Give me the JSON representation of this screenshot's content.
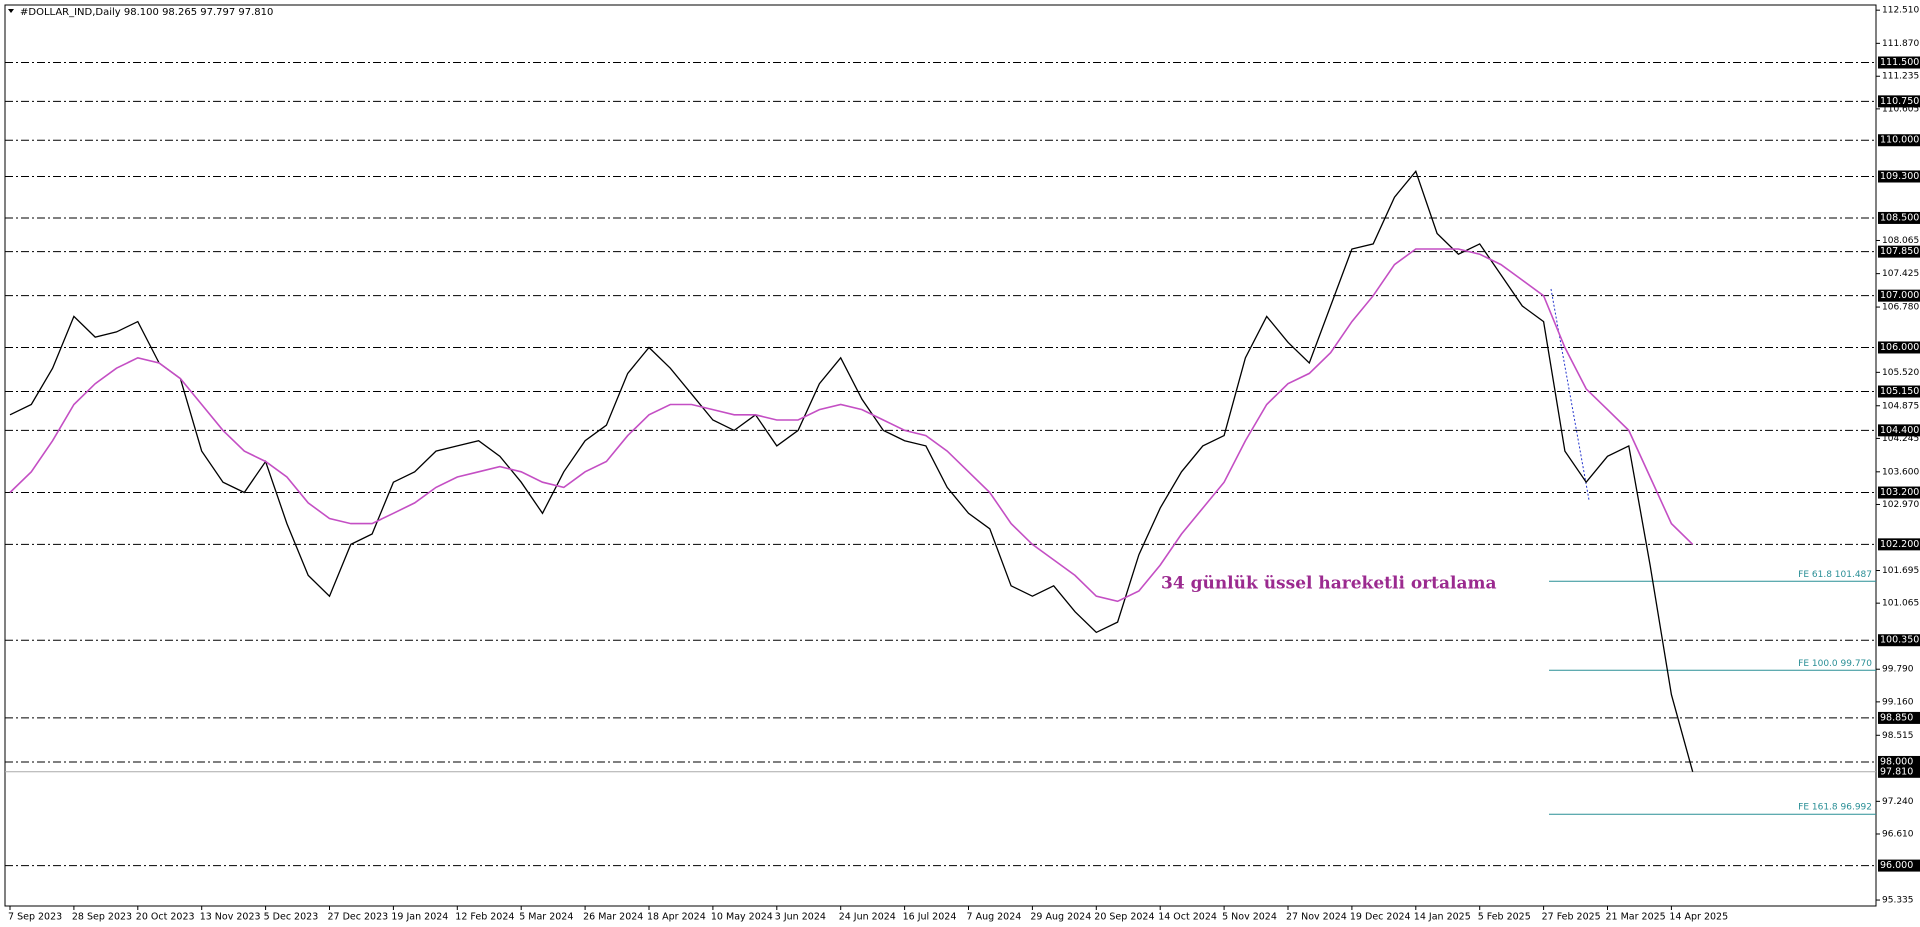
{
  "chart_data": {
    "type": "line",
    "title": "#DOLLAR_IND,Daily  98.100 98.265 97.797 97.810",
    "annotation": "34 günlük üssel hareketli ortalama",
    "annotation_color": "#9b2a8f",
    "categories": [
      "7 Sep 2023",
      null,
      null,
      "28 Sep 2023",
      null,
      null,
      "20 Oct 2023",
      null,
      null,
      "13 Nov 2023",
      null,
      null,
      "5 Dec 2023",
      null,
      null,
      "27 Dec 2023",
      null,
      null,
      "19 Jan 2024",
      null,
      null,
      "12 Feb 2024",
      null,
      null,
      "5 Mar 2024",
      null,
      null,
      "26 Mar 2024",
      null,
      null,
      "18 Apr 2024",
      null,
      null,
      "10 May 2024",
      null,
      null,
      "3 Jun 2024",
      null,
      null,
      "24 Jun 2024",
      null,
      null,
      "16 Jul 2024",
      null,
      null,
      "7 Aug 2024",
      null,
      null,
      "29 Aug 2024",
      null,
      null,
      "20 Sep 2024",
      null,
      null,
      "14 Oct 2024",
      null,
      null,
      "5 Nov 2024",
      null,
      null,
      "27 Nov 2024",
      null,
      null,
      "19 Dec 2024",
      null,
      null,
      "14 Jan 2025",
      null,
      null,
      "5 Feb 2025",
      null,
      null,
      "27 Feb 2025",
      null,
      null,
      "21 Mar 2025",
      null,
      null,
      "14 Apr 2025",
      null
    ],
    "series": [
      {
        "color": "#000000",
        "values": [
          104.7,
          104.9,
          105.6,
          106.6,
          106.2,
          106.3,
          106.5,
          105.7,
          105.4,
          104.0,
          103.4,
          103.2,
          103.8,
          102.6,
          101.6,
          101.2,
          102.2,
          102.4,
          103.4,
          103.6,
          104.0,
          104.1,
          104.2,
          103.9,
          103.4,
          102.8,
          103.6,
          104.2,
          104.5,
          105.5,
          106.0,
          105.6,
          105.1,
          104.6,
          104.4,
          104.7,
          104.1,
          104.4,
          105.3,
          105.8,
          105.0,
          104.4,
          104.2,
          104.1,
          103.3,
          102.8,
          102.5,
          101.4,
          101.2,
          101.4,
          100.9,
          100.5,
          100.7,
          102.0,
          102.9,
          103.6,
          104.1,
          104.3,
          105.8,
          106.6,
          106.1,
          105.7,
          106.8,
          107.9,
          108.0,
          108.9,
          109.4,
          108.2,
          107.8,
          108.0,
          107.4,
          106.8,
          106.5,
          104.0,
          103.4,
          103.9,
          104.1,
          101.8,
          99.3,
          97.81
        ]
      },
      {
        "color": "#c44fc4",
        "values": [
          103.2,
          103.6,
          104.2,
          104.9,
          105.3,
          105.6,
          105.8,
          105.7,
          105.4,
          104.9,
          104.4,
          104.0,
          103.8,
          103.5,
          103.0,
          102.7,
          102.6,
          102.6,
          102.8,
          103.0,
          103.3,
          103.5,
          103.6,
          103.7,
          103.6,
          103.4,
          103.3,
          103.6,
          103.8,
          104.3,
          104.7,
          104.9,
          104.9,
          104.8,
          104.7,
          104.7,
          104.6,
          104.6,
          104.8,
          104.9,
          104.8,
          104.6,
          104.4,
          104.3,
          104.0,
          103.6,
          103.2,
          102.6,
          102.2,
          101.9,
          101.6,
          101.2,
          101.1,
          101.3,
          101.8,
          102.4,
          102.9,
          103.4,
          104.2,
          104.9,
          105.3,
          105.5,
          105.9,
          106.5,
          107.0,
          107.6,
          107.9,
          107.9,
          107.9,
          107.8,
          107.6,
          107.3,
          107.0,
          106.0,
          105.2,
          104.8,
          104.4,
          103.5,
          102.6,
          102.2
        ]
      }
    ],
    "ylim": [
      95.22,
      112.61
    ],
    "yticks": [
      {
        "value": 112.51,
        "label": "112.510"
      },
      {
        "value": 111.87,
        "label": "111.870"
      },
      111.235,
      110.605,
      108.065,
      107.425,
      {
        "value": 106.78,
        "label": "106.780"
      },
      {
        "value": 105.52,
        "label": "105.520"
      },
      104.875,
      104.245,
      {
        "value": 103.6,
        "label": "103.600"
      },
      {
        "value": 102.97,
        "label": "102.970"
      },
      101.695,
      101.065,
      {
        "value": 99.79,
        "label": "99.790"
      },
      {
        "value": 99.16,
        "label": "99.160"
      },
      98.515,
      {
        "value": 97.24,
        "label": "97.240"
      },
      {
        "value": 96.61,
        "label": "96.610"
      },
      95.335
    ],
    "levels": [
      {
        "value": 111.5,
        "label": "111.500"
      },
      {
        "value": 110.75,
        "label": "110.750"
      },
      {
        "value": 110,
        "label": "110.000"
      },
      {
        "value": 109.3,
        "label": "109.300"
      },
      {
        "value": 108.5,
        "label": "108.500"
      },
      {
        "value": 107.85,
        "label": "107.850"
      },
      {
        "value": 107,
        "label": "107.000"
      },
      {
        "value": 106,
        "label": "106.000"
      },
      {
        "value": 105.15,
        "label": "105.150"
      },
      {
        "value": 104.4,
        "label": "104.400"
      },
      {
        "value": 103.2,
        "label": "103.200"
      },
      {
        "value": 102.2,
        "label": "102.200"
      },
      {
        "value": 100.35,
        "label": "100.350"
      },
      {
        "value": 98.85,
        "label": "98.850"
      },
      {
        "value": 98,
        "label": "98.000"
      },
      {
        "value": 96,
        "label": "96.000"
      }
    ],
    "current": {
      "value": 97.81,
      "label": "97.810"
    },
    "fibs": [
      {
        "value": 101.487,
        "label": "FE 61.8 101.487"
      },
      {
        "value": 99.77,
        "label": "FE 100.0 99.770"
      },
      {
        "value": 96.992,
        "label": "FE 161.8 96.992"
      }
    ],
    "fib_color": "#2a8f96"
  }
}
